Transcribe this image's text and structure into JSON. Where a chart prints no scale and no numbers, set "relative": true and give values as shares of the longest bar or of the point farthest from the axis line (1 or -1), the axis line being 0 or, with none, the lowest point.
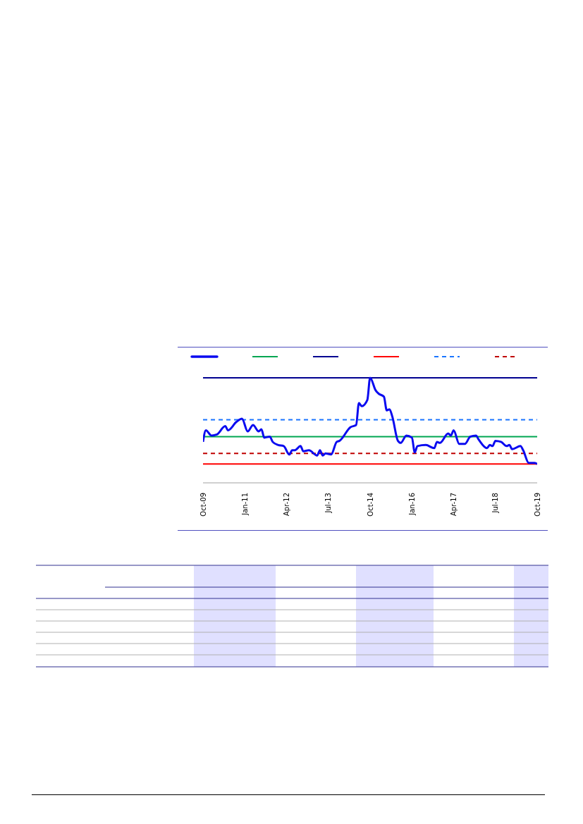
{
  "chart_data": {
    "type": "line",
    "relative": true,
    "x": [
      "2009-10",
      "2009-11",
      "2010-01",
      "2010-03",
      "2010-06",
      "2010-07",
      "2010-10",
      "2010-12",
      "2011-02",
      "2011-04",
      "2011-06",
      "2011-07",
      "2011-08",
      "2011-10",
      "2011-11",
      "2012-01",
      "2012-03",
      "2012-05",
      "2012-06",
      "2012-07",
      "2012-09",
      "2012-10",
      "2012-12",
      "2013-03",
      "2013-04",
      "2013-05",
      "2013-06",
      "2013-08",
      "2013-10",
      "2013-11",
      "2014-03",
      "2014-05",
      "2014-06",
      "2014-07",
      "2014-09",
      "2014-10",
      "2014-12",
      "2015-01",
      "2015-03",
      "2015-04",
      "2015-05",
      "2015-06",
      "2015-08",
      "2015-09",
      "2015-11",
      "2016-01",
      "2016-02",
      "2016-03",
      "2016-06",
      "2016-09",
      "2016-10",
      "2016-11",
      "2017-02",
      "2017-03",
      "2017-04",
      "2017-06",
      "2017-08",
      "2017-10",
      "2017-12",
      "2018-01",
      "2018-04",
      "2018-05",
      "2018-06",
      "2018-07",
      "2018-09",
      "2018-11",
      "2018-12",
      "2019-01",
      "2019-04",
      "2019-05",
      "2019-07",
      "2019-09",
      "2019-10"
    ],
    "series": [
      {
        "color": "#0a0af0",
        "values": [
          0.39,
          0.5,
          0.45,
          0.46,
          0.54,
          0.5,
          0.58,
          0.61,
          0.49,
          0.55,
          0.49,
          0.51,
          0.43,
          0.44,
          0.39,
          0.36,
          0.35,
          0.27,
          0.31,
          0.31,
          0.35,
          0.3,
          0.31,
          0.26,
          0.31,
          0.26,
          0.28,
          0.27,
          0.39,
          0.4,
          0.53,
          0.55,
          0.76,
          0.73,
          0.79,
          1.0,
          0.88,
          0.85,
          0.82,
          0.69,
          0.7,
          0.63,
          0.4,
          0.38,
          0.45,
          0.43,
          0.29,
          0.35,
          0.36,
          0.33,
          0.39,
          0.38,
          0.47,
          0.45,
          0.5,
          0.37,
          0.37,
          0.44,
          0.45,
          0.41,
          0.33,
          0.36,
          0.35,
          0.4,
          0.39,
          0.35,
          0.36,
          0.32,
          0.35,
          0.31,
          0.19,
          0.19,
          0.18
        ]
      }
    ],
    "ref_lines": [
      {
        "axis": "y",
        "value": 0.44,
        "color": "#00a651",
        "line_style": "solid"
      },
      {
        "axis": "y",
        "value": 1.0,
        "color": "#000090",
        "line_style": "solid"
      },
      {
        "axis": "y",
        "value": 0.18,
        "color": "#ff0000",
        "line_style": "solid"
      },
      {
        "axis": "y",
        "value": 0.6,
        "color": "#1a75ff",
        "line_style": "dashed"
      },
      {
        "axis": "y",
        "value": 0.28,
        "color": "#c00000",
        "line_style": "dashed"
      }
    ],
    "xlim": [
      "2009-10",
      "2019-10"
    ],
    "xticks": [
      {
        "value": "2009-10",
        "label": "Oct-09"
      },
      {
        "value": "2011-01",
        "label": "Jan-11"
      },
      {
        "value": "2012-04",
        "label": "Apr-12"
      },
      {
        "value": "2013-07",
        "label": "Jul-13"
      },
      {
        "value": "2014-10",
        "label": "Oct-14"
      },
      {
        "value": "2016-01",
        "label": "Jan-16"
      },
      {
        "value": "2017-04",
        "label": "Apr-17"
      },
      {
        "value": "2018-07",
        "label": "Jul-18"
      },
      {
        "value": "2019-10",
        "label": "Oct-19"
      }
    ]
  }
}
